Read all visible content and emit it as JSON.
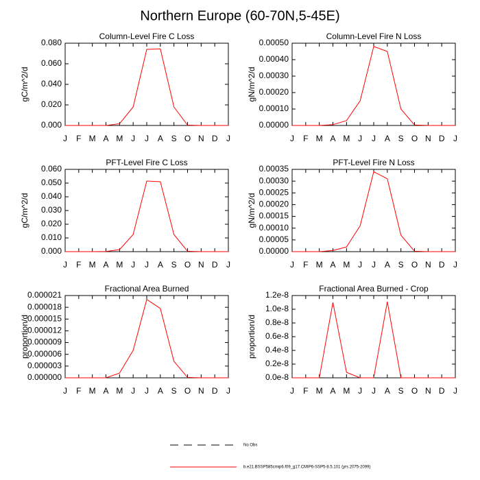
{
  "title": "Northern Europe (60-70N,5-45E)",
  "legend": [
    {
      "name": "No Obs",
      "color": "#000000",
      "dash": true
    },
    {
      "name": "b.e21.BSSP585cmip6.f09_g17.CMIP6-SSP5-8.5.101 (yrs 2075-2099)",
      "color": "#ff0000",
      "dash": false
    }
  ],
  "chart_data": [
    {
      "type": "line",
      "title": "Column-Level Fire C Loss",
      "ylabel": "gC/m^2/d",
      "categories": [
        "J",
        "F",
        "M",
        "A",
        "M",
        "J",
        "J",
        "A",
        "S",
        "O",
        "N",
        "D",
        "J"
      ],
      "values": [
        0,
        0,
        0,
        0,
        0.0017,
        0.018,
        0.074,
        0.0745,
        0.018,
        0.0003,
        0,
        0,
        0
      ],
      "color": "#ff0000",
      "ylim": [
        0,
        0.08
      ],
      "yticks": [
        {
          "value": 0,
          "label": "0.000"
        },
        {
          "value": 0.02,
          "label": "0.020"
        },
        {
          "value": 0.04,
          "label": "0.040"
        },
        {
          "value": 0.06,
          "label": "0.060"
        },
        {
          "value": 0.08,
          "label": "0.080"
        }
      ]
    },
    {
      "type": "line",
      "title": "Column-Level Fire N Loss",
      "ylabel": "gN/m^2/d",
      "categories": [
        "J",
        "F",
        "M",
        "A",
        "M",
        "J",
        "J",
        "A",
        "S",
        "O",
        "N",
        "D",
        "J"
      ],
      "values": [
        0,
        0,
        0,
        5e-06,
        3e-05,
        0.00015,
        0.00048,
        0.00045,
        0.0001,
        3e-06,
        0,
        0,
        0
      ],
      "color": "#ff0000",
      "ylim": [
        0,
        0.0005
      ],
      "yticks": [
        {
          "value": 0,
          "label": "0.00000"
        },
        {
          "value": 0.0001,
          "label": "0.00010"
        },
        {
          "value": 0.0002,
          "label": "0.00020"
        },
        {
          "value": 0.0003,
          "label": "0.00030"
        },
        {
          "value": 0.0004,
          "label": "0.00040"
        },
        {
          "value": 0.0005,
          "label": "0.00050"
        }
      ]
    },
    {
      "type": "line",
      "title": "PFT-Level Fire C Loss",
      "ylabel": "gC/m^2/d",
      "categories": [
        "J",
        "F",
        "M",
        "A",
        "M",
        "J",
        "J",
        "A",
        "S",
        "O",
        "N",
        "D",
        "J"
      ],
      "values": [
        0,
        0,
        0,
        0.0001,
        0.0015,
        0.0125,
        0.0515,
        0.051,
        0.0125,
        0.0003,
        0,
        0,
        0
      ],
      "color": "#ff0000",
      "ylim": [
        0,
        0.06
      ],
      "yticks": [
        {
          "value": 0,
          "label": "0.000"
        },
        {
          "value": 0.01,
          "label": "0.010"
        },
        {
          "value": 0.02,
          "label": "0.020"
        },
        {
          "value": 0.03,
          "label": "0.030"
        },
        {
          "value": 0.04,
          "label": "0.040"
        },
        {
          "value": 0.05,
          "label": "0.050"
        },
        {
          "value": 0.06,
          "label": "0.060"
        }
      ]
    },
    {
      "type": "line",
      "title": "PFT-Level Fire N Loss",
      "ylabel": "gN/m^2/d",
      "categories": [
        "J",
        "F",
        "M",
        "A",
        "M",
        "J",
        "J",
        "A",
        "S",
        "O",
        "N",
        "D",
        "J"
      ],
      "values": [
        0,
        0,
        0,
        5e-06,
        2e-05,
        0.00011,
        0.00034,
        0.00031,
        7e-05,
        2e-06,
        0,
        0,
        0
      ],
      "color": "#ff0000",
      "ylim": [
        0,
        0.00035
      ],
      "yticks": [
        {
          "value": 0,
          "label": "0.00000"
        },
        {
          "value": 5e-05,
          "label": "0.00005"
        },
        {
          "value": 0.0001,
          "label": "0.00010"
        },
        {
          "value": 0.00015,
          "label": "0.00015"
        },
        {
          "value": 0.0002,
          "label": "0.00020"
        },
        {
          "value": 0.00025,
          "label": "0.00025"
        },
        {
          "value": 0.0003,
          "label": "0.00030"
        },
        {
          "value": 0.00035,
          "label": "0.00035"
        }
      ]
    },
    {
      "type": "line",
      "title": "Fractional Area Burned",
      "ylabel": "proportion/d",
      "categories": [
        "J",
        "F",
        "M",
        "A",
        "M",
        "J",
        "J",
        "A",
        "S",
        "O",
        "N",
        "D",
        "J"
      ],
      "values": [
        0,
        0,
        0,
        0,
        1.2e-06,
        7e-06,
        2e-05,
        1.77e-05,
        4.2e-06,
        1e-07,
        0,
        0,
        0
      ],
      "color": "#ff0000",
      "ylim": [
        0,
        2.1e-05
      ],
      "yticks": [
        {
          "value": 0,
          "label": "0.000000"
        },
        {
          "value": 3e-06,
          "label": "0.000003"
        },
        {
          "value": 6e-06,
          "label": "0.000006"
        },
        {
          "value": 9e-06,
          "label": "0.000009"
        },
        {
          "value": 1.2e-05,
          "label": "0.000012"
        },
        {
          "value": 1.5e-05,
          "label": "0.000015"
        },
        {
          "value": 1.8e-05,
          "label": "0.000018"
        },
        {
          "value": 2.1e-05,
          "label": "0.000021"
        }
      ]
    },
    {
      "type": "line",
      "title": "Fractional Area Burned - Crop",
      "ylabel": "proportion/d",
      "categories": [
        "J",
        "F",
        "M",
        "A",
        "M",
        "J",
        "J",
        "A",
        "S",
        "O",
        "N",
        "D",
        "J"
      ],
      "values": [
        0,
        0,
        0,
        1.1e-08,
        8e-10,
        0,
        0,
        1.11e-08,
        0,
        0,
        0,
        0,
        0
      ],
      "color": "#ff0000",
      "ylim": [
        0,
        1.2e-08
      ],
      "yticks": [
        {
          "value": 0,
          "label": "0.0e-8"
        },
        {
          "value": 2e-09,
          "label": "0.2e-8"
        },
        {
          "value": 4e-09,
          "label": "0.4e-8"
        },
        {
          "value": 6e-09,
          "label": "0.6e-8"
        },
        {
          "value": 8e-09,
          "label": "0.8e-8"
        },
        {
          "value": 1e-08,
          "label": "1.0e-8"
        },
        {
          "value": 1.2e-08,
          "label": "1.2e-8"
        }
      ]
    }
  ]
}
